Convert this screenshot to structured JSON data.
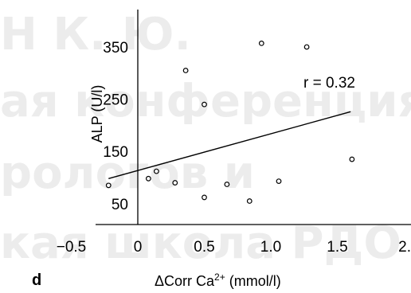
{
  "watermark": [
    "Н К. Ю.",
    "ая конференция",
    "рологов и",
    "кая школа РДО"
  ],
  "chart_data": {
    "type": "scatter",
    "panel_label": "d",
    "xlabel_main": "ΔCorr Ca",
    "xlabel_sup": "2+",
    "xlabel_unit": " (mmol/l)",
    "ylabel": "ALP (U/l)",
    "xlim": [
      -0.5,
      2.0
    ],
    "ylim": [
      0,
      420
    ],
    "xticks": [
      -0.5,
      0,
      0.5,
      1.0,
      1.5,
      2.0
    ],
    "xtick_labels": [
      "−0.5",
      "0",
      "0.5",
      "1.0",
      "1.5",
      "2."
    ],
    "yticks": [
      50,
      150,
      250,
      350
    ],
    "ytick_labels": [
      "50",
      "150",
      "250",
      "350"
    ],
    "grid": false,
    "annotation": "r = 0.32",
    "points": [
      {
        "x": -0.22,
        "y": 85
      },
      {
        "x": 0.08,
        "y": 98
      },
      {
        "x": 0.14,
        "y": 112
      },
      {
        "x": 0.28,
        "y": 90
      },
      {
        "x": 0.36,
        "y": 305
      },
      {
        "x": 0.5,
        "y": 62
      },
      {
        "x": 0.5,
        "y": 240
      },
      {
        "x": 0.67,
        "y": 87
      },
      {
        "x": 0.84,
        "y": 55
      },
      {
        "x": 0.93,
        "y": 357
      },
      {
        "x": 1.06,
        "y": 93
      },
      {
        "x": 1.27,
        "y": 350
      },
      {
        "x": 1.61,
        "y": 135
      }
    ],
    "fit_line": {
      "x": [
        -0.22,
        1.6
      ],
      "y": [
        98,
        226
      ]
    }
  }
}
